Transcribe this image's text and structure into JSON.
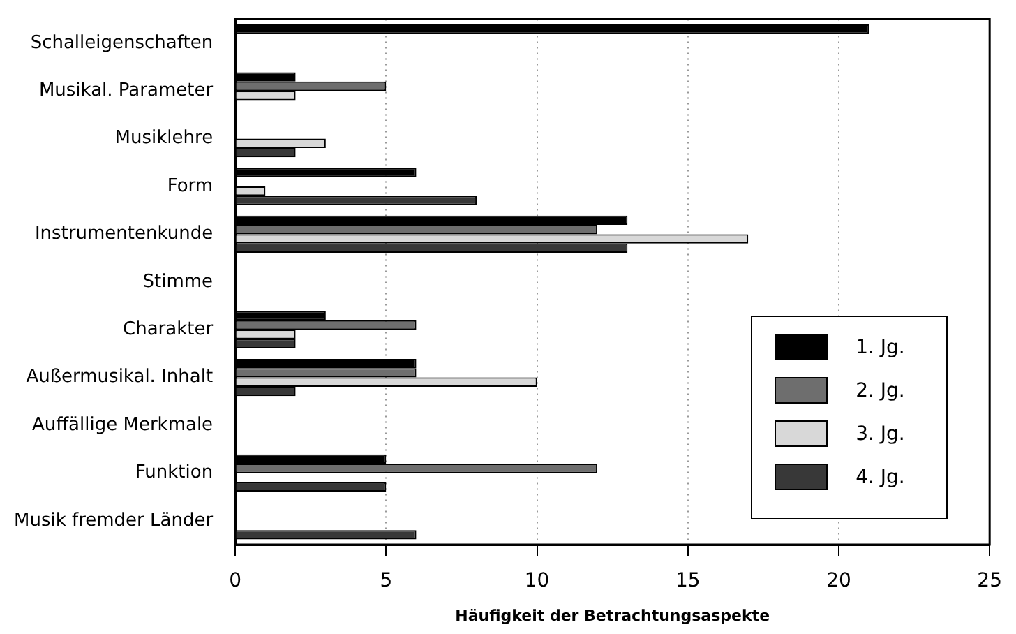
{
  "chart_data": {
    "type": "bar",
    "orientation": "horizontal",
    "xlabel": "Häufigkeit der Betrachtungsaspekte",
    "categories": [
      "Schalleigenschaften",
      "Musikal. Parameter",
      "Musiklehre",
      "Form",
      "Instrumentenkunde",
      "Stimme",
      "Charakter",
      "Außermusikal. Inhalt",
      "Auffällige Merkmale",
      "Funktion",
      "Musik fremder Länder"
    ],
    "series": [
      {
        "name": "1. Jg.",
        "color": "#000000",
        "values": [
          21,
          2,
          0,
          6,
          13,
          0,
          3,
          6,
          0,
          5,
          0
        ]
      },
      {
        "name": "2. Jg.",
        "color": "#6e6e6e",
        "values": [
          0,
          5,
          0,
          0,
          12,
          0,
          6,
          6,
          0,
          12,
          0
        ]
      },
      {
        "name": "3. Jg.",
        "color": "#d8d8d8",
        "values": [
          0,
          2,
          3,
          1,
          17,
          0,
          2,
          10,
          0,
          0,
          0
        ]
      },
      {
        "name": "4. Jg.",
        "color": "#383838",
        "values": [
          0,
          0,
          2,
          8,
          13,
          0,
          2,
          2,
          0,
          5,
          6
        ]
      }
    ],
    "xlim": [
      0,
      25
    ],
    "xticks": [
      0,
      5,
      10,
      15,
      20,
      25
    ],
    "grid": "x",
    "legend": "bottom right"
  }
}
